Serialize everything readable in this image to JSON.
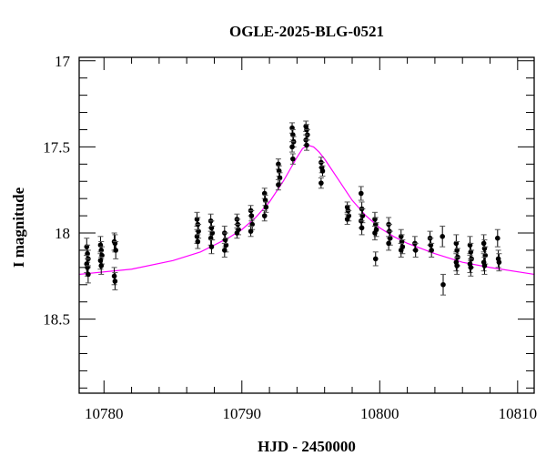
{
  "chart_data": {
    "type": "scatter",
    "title": "OGLE-2025-BLG-0521",
    "xlabel": "HJD - 2450000",
    "ylabel": "I magnitude",
    "xlim": [
      10778.2,
      10811.2
    ],
    "ylim": [
      18.93,
      16.98
    ],
    "y_inverted": true,
    "grid": false,
    "xticks": [
      10780,
      10790,
      10800,
      10810
    ],
    "xtick_labels": [
      "10780",
      "10790",
      "10800",
      "10810"
    ],
    "x_minor_step": 2,
    "yticks": [
      17,
      17.5,
      18,
      18.5
    ],
    "ytick_labels": [
      "17",
      "17.5",
      "18",
      "18.5"
    ],
    "y_minor_step": 0.1,
    "colors": {
      "points": "#000000",
      "model": "#ff00ff"
    },
    "observations": {
      "columns": [
        "hjd",
        "mag",
        "err"
      ],
      "groups": [
        {
          "x": 10778.8,
          "mags": [
            18.08,
            18.12,
            18.15,
            18.18,
            18.2,
            18.24
          ],
          "err": 0.05
        },
        {
          "x": 10779.8,
          "mags": [
            18.07,
            18.1,
            18.13,
            18.16,
            18.19
          ],
          "err": 0.05
        },
        {
          "x": 10780.8,
          "mags": [
            18.05,
            18.06,
            18.1,
            18.25,
            18.28
          ],
          "err": 0.05
        },
        {
          "x": 10786.8,
          "mags": [
            17.92,
            17.95,
            17.99,
            18.02,
            18.05
          ],
          "err": 0.04
        },
        {
          "x": 10787.8,
          "mags": [
            17.93,
            17.97,
            18.0,
            18.03,
            18.08
          ],
          "err": 0.04
        },
        {
          "x": 10788.8,
          "mags": [
            18.0,
            18.04,
            18.07,
            18.1
          ],
          "err": 0.04
        },
        {
          "x": 10789.7,
          "mags": [
            17.92,
            17.95,
            17.98,
            18.0
          ],
          "err": 0.03
        },
        {
          "x": 10790.7,
          "mags": [
            17.87,
            17.9,
            17.95,
            17.99
          ],
          "err": 0.03
        },
        {
          "x": 10791.7,
          "mags": [
            17.77,
            17.81,
            17.85,
            17.9
          ],
          "err": 0.03
        },
        {
          "x": 10792.7,
          "mags": [
            17.6,
            17.64,
            17.68,
            17.72
          ],
          "err": 0.03
        },
        {
          "x": 10793.7,
          "mags": [
            17.39,
            17.43,
            17.47,
            17.5,
            17.57
          ],
          "err": 0.03
        },
        {
          "x": 10794.7,
          "mags": [
            17.38,
            17.4,
            17.43,
            17.46,
            17.49
          ],
          "err": 0.03
        },
        {
          "x": 10795.8,
          "mags": [
            17.59,
            17.62,
            17.64,
            17.71
          ],
          "err": 0.03
        },
        {
          "x": 10797.7,
          "mags": [
            17.85,
            17.87,
            17.9,
            17.92
          ],
          "err": 0.03
        },
        {
          "x": 10798.7,
          "mags": [
            17.77,
            17.86,
            17.9,
            17.93,
            17.97
          ],
          "err": 0.04
        },
        {
          "x": 10799.7,
          "mags": [
            17.92,
            17.95,
            17.98,
            18.0,
            18.15
          ],
          "err": 0.04
        },
        {
          "x": 10800.7,
          "mags": [
            17.95,
            17.99,
            18.03,
            18.06
          ],
          "err": 0.04
        },
        {
          "x": 10801.6,
          "mags": [
            18.02,
            18.05,
            18.08,
            18.1
          ],
          "err": 0.04
        },
        {
          "x": 10802.6,
          "mags": [
            18.06,
            18.1
          ],
          "err": 0.04
        },
        {
          "x": 10803.7,
          "mags": [
            18.03,
            18.07,
            18.1
          ],
          "err": 0.04
        },
        {
          "x": 10804.6,
          "mags": [
            18.02,
            18.3
          ],
          "err": 0.06
        },
        {
          "x": 10805.6,
          "mags": [
            18.06,
            18.1,
            18.14,
            18.17,
            18.19
          ],
          "err": 0.05
        },
        {
          "x": 10806.6,
          "mags": [
            18.07,
            18.11,
            18.15,
            18.18,
            18.2
          ],
          "err": 0.05
        },
        {
          "x": 10807.6,
          "mags": [
            18.06,
            18.09,
            18.13,
            18.17,
            18.19
          ],
          "err": 0.05
        },
        {
          "x": 10808.6,
          "mags": [
            18.03,
            18.15,
            18.17
          ],
          "err": 0.05
        }
      ]
    },
    "model": {
      "x": [
        10778.2,
        10782,
        10785,
        10787,
        10788,
        10789,
        10790,
        10791,
        10792,
        10793,
        10793.5,
        10794,
        10794.4,
        10794.8,
        10795.2,
        10795.6,
        10796,
        10796.5,
        10797,
        10798,
        10799,
        10800,
        10801,
        10802,
        10804,
        10806,
        10808,
        10811.2
      ],
      "y": [
        18.24,
        18.21,
        18.16,
        18.11,
        18.07,
        18.03,
        17.98,
        17.91,
        17.82,
        17.7,
        17.63,
        17.56,
        17.51,
        17.49,
        17.5,
        17.53,
        17.57,
        17.63,
        17.69,
        17.81,
        17.9,
        17.97,
        18.02,
        18.06,
        18.12,
        18.17,
        18.2,
        18.24
      ]
    }
  }
}
